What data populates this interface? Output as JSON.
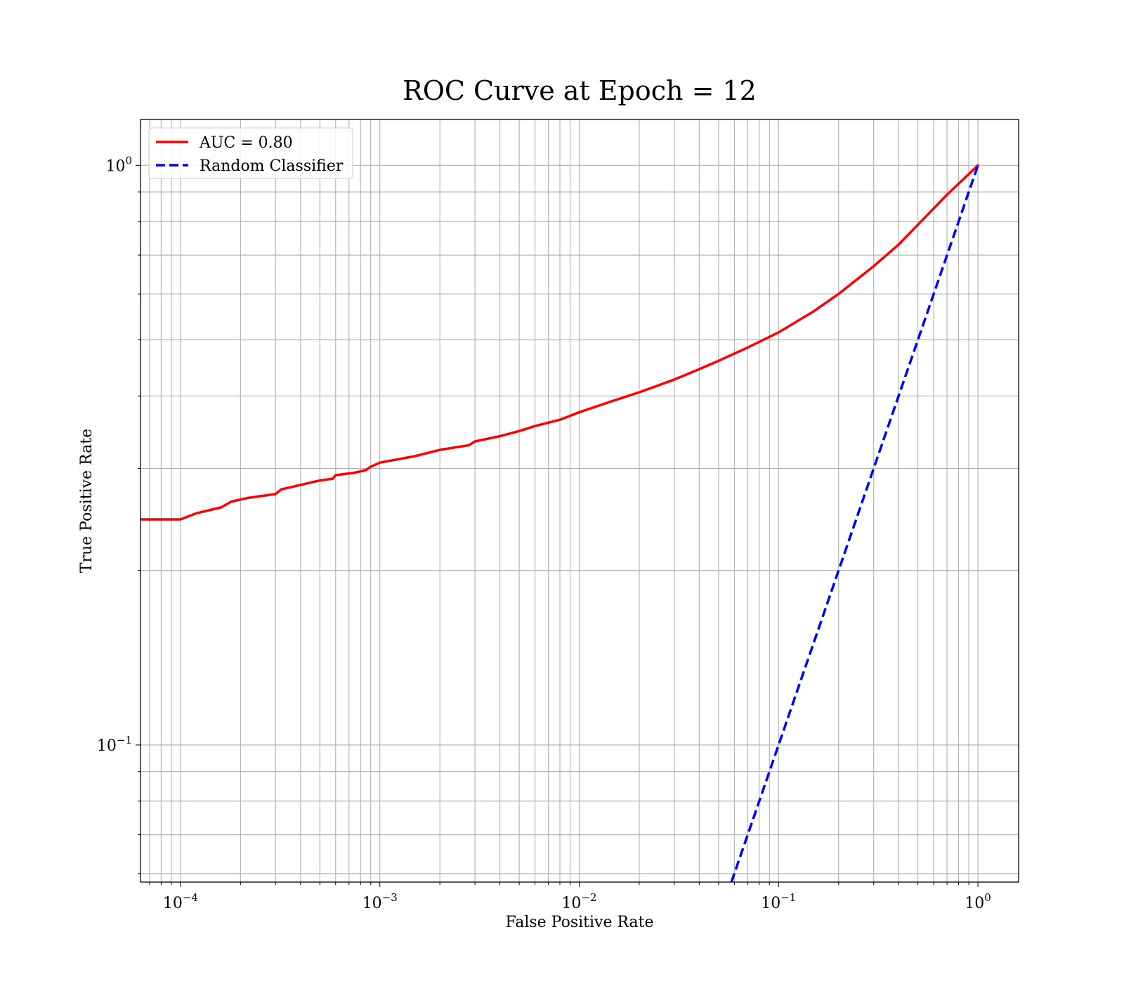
{
  "chart_data": {
    "type": "line",
    "title": "ROC Curve at Epoch = 12",
    "xlabel": "False Positive Rate",
    "ylabel": "True Positive Rate",
    "xscale": "log",
    "yscale": "log",
    "xlim": [
      6.3e-05,
      1.6
    ],
    "ylim": [
      0.058,
      1.2
    ],
    "grid": "major+minor",
    "legend_position": "upper-left",
    "x_ticks": [
      {
        "base": "10",
        "exp": "−4"
      },
      {
        "base": "10",
        "exp": "−3"
      },
      {
        "base": "10",
        "exp": "−2"
      },
      {
        "base": "10",
        "exp": "−1"
      },
      {
        "base": "10",
        "exp": "0"
      }
    ],
    "y_ticks": [
      {
        "base": "10",
        "exp": "−1"
      },
      {
        "base": "10",
        "exp": "0"
      }
    ],
    "series": [
      {
        "name": "AUC = 0.80",
        "color": "#ff0000",
        "style": "solid",
        "x": [
          6.3e-05,
          0.0001,
          0.00012,
          0.00016,
          0.00018,
          0.00022,
          0.0003,
          0.00032,
          0.0004,
          0.0005,
          0.00058,
          0.0006,
          0.00075,
          0.00085,
          0.0009,
          0.001,
          0.0015,
          0.002,
          0.0028,
          0.003,
          0.004,
          0.005,
          0.006,
          0.008,
          0.01,
          0.014,
          0.02,
          0.03,
          0.04,
          0.05,
          0.07,
          0.1,
          0.15,
          0.2,
          0.3,
          0.4,
          0.5,
          0.7,
          1.0
        ],
        "y": [
          0.245,
          0.245,
          0.251,
          0.257,
          0.263,
          0.267,
          0.271,
          0.276,
          0.281,
          0.286,
          0.288,
          0.292,
          0.295,
          0.298,
          0.302,
          0.307,
          0.315,
          0.323,
          0.329,
          0.334,
          0.341,
          0.348,
          0.355,
          0.364,
          0.375,
          0.39,
          0.406,
          0.427,
          0.445,
          0.46,
          0.485,
          0.515,
          0.56,
          0.6,
          0.67,
          0.73,
          0.79,
          0.89,
          1.0
        ]
      },
      {
        "name": "Random Classifier",
        "color": "#0000ff",
        "style": "dashed",
        "x": [
          0.058,
          1.0
        ],
        "y": [
          0.058,
          1.0
        ]
      }
    ]
  }
}
